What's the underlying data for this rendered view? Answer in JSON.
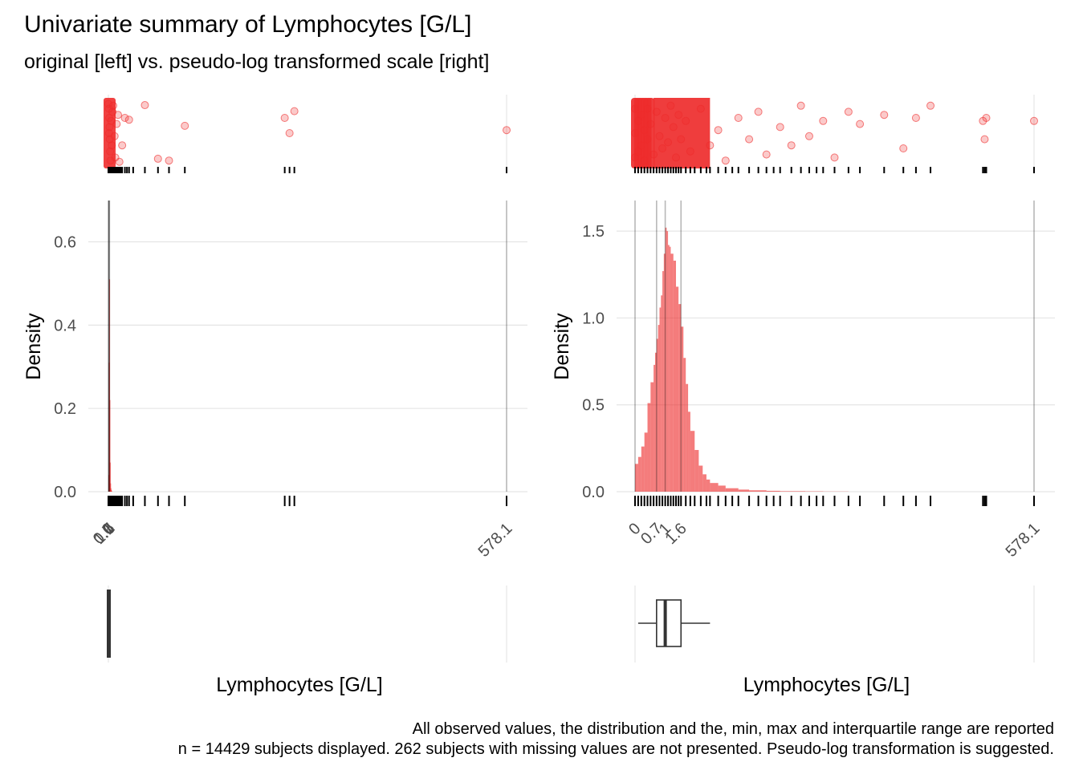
{
  "title": "Univariate summary of Lymphocytes [G/L]",
  "subtitle": "original [left] vs. pseudo-log transformed scale [right]",
  "caption_line1": "All observed values, the distribution and the, min, max and interquartile range are reported",
  "caption_line2": "n = 14429 subjects displayed. 262 subjects with missing values are not presented. Pseudo-log transformation is suggested.",
  "colors": {
    "points": "#ee2c2c",
    "bars": "#ee2c2c",
    "grid": "#e5e5e5",
    "refline": "#a6a6a6",
    "text_axis": "#4d4d4d",
    "box_line": "#333333"
  },
  "chart_data": [
    {
      "panel": "left",
      "scale": "original",
      "type": "bar",
      "ylabel": "Density",
      "xlabel": "Lymphocytes [G/L]",
      "ylim": [
        0,
        0.68
      ],
      "xlim": [
        0,
        578.1
      ],
      "y_ticks": [
        0.0,
        0.2,
        0.4,
        0.6
      ],
      "y_tick_labels": [
        "0.0",
        "0.2",
        "0.4",
        "0.6"
      ],
      "x_ticks": [
        0,
        0.7,
        1,
        1.6,
        578.1
      ],
      "x_tick_labels": [
        "0",
        "0.7",
        "1",
        "1.6",
        "578.1"
      ],
      "histogram": {
        "x": [
          0.0,
          0.5,
          1.0,
          1.5,
          2.0,
          2.5,
          3.0,
          3.5,
          4.0
        ],
        "density": [
          0.04,
          0.31,
          0.51,
          0.22,
          0.07,
          0.02,
          0.008,
          0.004,
          0.002
        ],
        "bin_width": 0.5
      },
      "rug_values": [
        0,
        0.3,
        0.5,
        0.7,
        1,
        1.3,
        1.6,
        2,
        2.5,
        3,
        3.5,
        4,
        4.5,
        5,
        6,
        7,
        8,
        9,
        10,
        12,
        14,
        16,
        18,
        20,
        24,
        27,
        30,
        36,
        53,
        72,
        88,
        111,
        256,
        263,
        270,
        578.1
      ],
      "jitter_points": [
        {
          "x": 0,
          "j": 0.02
        },
        {
          "x": 0.8,
          "j": 0.1
        },
        {
          "x": 1.2,
          "j": 0.25
        },
        {
          "x": 1.6,
          "j": 0.4
        },
        {
          "x": 2,
          "j": 0.6
        },
        {
          "x": 2.5,
          "j": 0.8
        },
        {
          "x": 3,
          "j": 0.95
        },
        {
          "x": 1,
          "j": 0.5
        },
        {
          "x": 4,
          "j": 0.3
        },
        {
          "x": 5,
          "j": 0.7
        },
        {
          "x": 6,
          "j": 0.15
        },
        {
          "x": 7,
          "j": 0.05
        },
        {
          "x": 9,
          "j": 0.55
        },
        {
          "x": 10,
          "j": 0.9
        },
        {
          "x": 12,
          "j": 0.35
        },
        {
          "x": 14,
          "j": 0.2
        },
        {
          "x": 16,
          "j": 0.97
        },
        {
          "x": 20,
          "j": 0.7
        },
        {
          "x": 24,
          "j": 0.25
        },
        {
          "x": 30,
          "j": 0.28
        },
        {
          "x": 53,
          "j": 0.04
        },
        {
          "x": 72,
          "j": 0.92
        },
        {
          "x": 88,
          "j": 0.95
        },
        {
          "x": 111,
          "j": 0.38
        },
        {
          "x": 256,
          "j": 0.25
        },
        {
          "x": 263,
          "j": 0.5
        },
        {
          "x": 270,
          "j": 0.14
        },
        {
          "x": 578.1,
          "j": 0.45
        }
      ],
      "boxplot": {
        "min": 0,
        "q1": 0.7,
        "median": 1.0,
        "q3": 1.6,
        "max": 578.1,
        "whisker_low": 0,
        "whisker_high": 3.0
      }
    },
    {
      "panel": "right",
      "scale": "pseudo-log",
      "type": "bar",
      "ylabel": "Density",
      "xlabel": "Lymphocytes [G/L]",
      "ylim": [
        0,
        1.63
      ],
      "xlim": [
        0,
        578.1
      ],
      "y_ticks": [
        0.0,
        0.5,
        1.0,
        1.5
      ],
      "y_tick_labels": [
        "0.0",
        "0.5",
        "1.0",
        "1.5"
      ],
      "x_ticks": [
        0,
        0.7,
        1,
        1.6,
        578.1
      ],
      "x_tick_labels": [
        "0",
        "0.7",
        "1",
        "1.6",
        "578.1"
      ],
      "histogram": {
        "x": [
          0.0,
          0.1,
          0.2,
          0.3,
          0.4,
          0.5,
          0.6,
          0.65,
          0.7,
          0.75,
          0.8,
          0.85,
          0.9,
          0.95,
          1.0,
          1.05,
          1.1,
          1.15,
          1.2,
          1.3,
          1.4,
          1.5,
          1.6,
          1.7,
          1.8,
          1.9,
          2.0,
          2.2,
          2.4,
          2.6,
          2.8,
          3.0,
          3.5,
          4.0,
          5.0,
          6.0,
          8.0,
          10.0,
          15.0,
          20.0
        ],
        "density": [
          0.16,
          0.2,
          0.26,
          0.34,
          0.51,
          0.63,
          0.73,
          0.8,
          0.88,
          0.96,
          1.06,
          1.13,
          1.27,
          1.37,
          1.52,
          1.5,
          1.42,
          1.41,
          1.37,
          1.33,
          1.18,
          1.08,
          0.95,
          0.77,
          0.62,
          0.46,
          0.35,
          0.24,
          0.15,
          0.1,
          0.07,
          0.05,
          0.035,
          0.02,
          0.012,
          0.008,
          0.005,
          0.003,
          0.002,
          0.001
        ]
      },
      "rug_values": [
        0,
        0.1,
        0.2,
        0.3,
        0.4,
        0.5,
        0.6,
        0.7,
        0.8,
        0.9,
        1,
        1.1,
        1.2,
        1.3,
        1.4,
        1.5,
        1.6,
        1.8,
        2,
        2.2,
        2.5,
        2.8,
        3,
        3.5,
        4,
        4.5,
        5,
        6,
        7,
        8,
        9,
        10,
        12,
        14,
        16,
        18,
        20,
        24,
        30,
        36,
        53,
        72,
        88,
        111,
        256,
        263,
        270,
        578.1
      ],
      "jitter_points": [
        {
          "x": 0,
          "j": 0.1
        },
        {
          "x": 0,
          "j": 0.5
        },
        {
          "x": 0,
          "j": 0.9
        },
        {
          "x": 0.1,
          "j": 0.3
        },
        {
          "x": 0.1,
          "j": 0.8
        },
        {
          "x": 0.2,
          "j": 0.2
        },
        {
          "x": 0.2,
          "j": 0.7
        },
        {
          "x": 0.3,
          "j": 0.45
        },
        {
          "x": 0.3,
          "j": 0.95
        },
        {
          "x": 0.4,
          "j": 0.1
        },
        {
          "x": 0.4,
          "j": 0.6
        },
        {
          "x": 0.5,
          "j": 0.35
        },
        {
          "x": 0.6,
          "j": 0.85
        },
        {
          "x": 0.7,
          "j": 0.15
        },
        {
          "x": 0.8,
          "j": 0.55
        },
        {
          "x": 0.9,
          "j": 0.75
        },
        {
          "x": 1,
          "j": 0.25
        },
        {
          "x": 1.1,
          "j": 0.65
        },
        {
          "x": 1.2,
          "j": 0.05
        },
        {
          "x": 1.3,
          "j": 0.4
        },
        {
          "x": 1.4,
          "j": 0.9
        },
        {
          "x": 1.5,
          "j": 0.2
        },
        {
          "x": 1.6,
          "j": 0.6
        },
        {
          "x": 1.8,
          "j": 0.3
        },
        {
          "x": 2,
          "j": 0.8
        },
        {
          "x": 2.5,
          "j": 0.1
        },
        {
          "x": 3,
          "j": 0.7
        },
        {
          "x": 3.5,
          "j": 0.45
        },
        {
          "x": 4,
          "j": 0.95
        },
        {
          "x": 5,
          "j": 0.25
        },
        {
          "x": 6,
          "j": 0.6
        },
        {
          "x": 7,
          "j": 0.15
        },
        {
          "x": 8,
          "j": 0.85
        },
        {
          "x": 10,
          "j": 0.4
        },
        {
          "x": 12,
          "j": 0.7
        },
        {
          "x": 14,
          "j": 0.05
        },
        {
          "x": 16,
          "j": 0.55
        },
        {
          "x": 20,
          "j": 0.3
        },
        {
          "x": 24,
          "j": 0.9
        },
        {
          "x": 30,
          "j": 0.15
        },
        {
          "x": 36,
          "j": 0.35
        },
        {
          "x": 53,
          "j": 0.2
        },
        {
          "x": 72,
          "j": 0.75
        },
        {
          "x": 88,
          "j": 0.25
        },
        {
          "x": 111,
          "j": 0.05
        },
        {
          "x": 256,
          "j": 0.3
        },
        {
          "x": 263,
          "j": 0.6
        },
        {
          "x": 270,
          "j": 0.25
        },
        {
          "x": 578.1,
          "j": 0.3
        }
      ],
      "boxplot": {
        "min": 0,
        "q1": 0.7,
        "median": 1.0,
        "q3": 1.6,
        "max": 578.1,
        "whisker_low": 0.1,
        "whisker_high": 3.0
      }
    }
  ]
}
